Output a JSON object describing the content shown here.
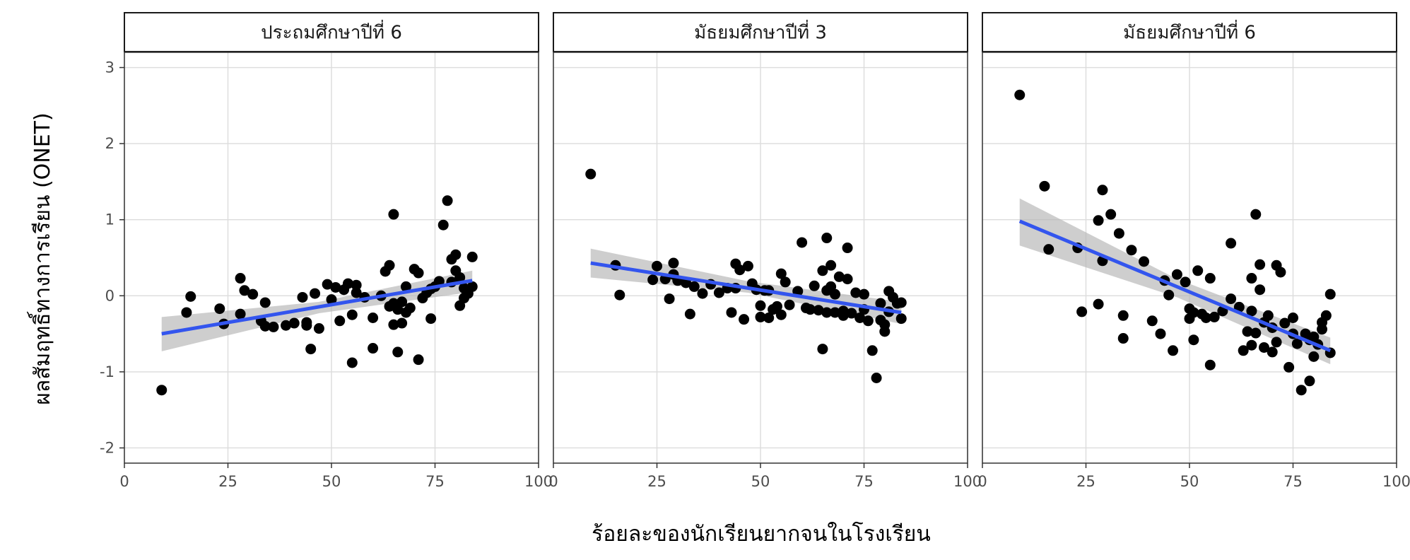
{
  "colors": {
    "point": "#000000",
    "fit_line": "#3355ee",
    "ci_band": "#b3b3b3",
    "grid": "#dcdcdc",
    "panel_border": "#333333"
  },
  "chart_data": {
    "type": "scatter",
    "facet_by": "grade level",
    "xlabel": "ร้อยละของนักเรียนยากจนในโรงเรียน",
    "ylabel": "ผลสัมฤทธิ์ทางการเรียน (ONET)",
    "xlim": [
      0,
      100
    ],
    "ylim": [
      -2.2,
      3.2
    ],
    "xticks": [
      0,
      25,
      50,
      75,
      100
    ],
    "yticks": [
      -2,
      -1,
      0,
      1,
      2,
      3
    ],
    "grid": true,
    "smoother": "linear fit with 95% confidence band",
    "panels": [
      {
        "title": "ประถมศึกษาปีที่ 6",
        "fit": {
          "x": [
            9,
            84
          ],
          "y": [
            -0.5,
            0.2
          ]
        },
        "band": {
          "x": [
            9,
            47,
            84
          ],
          "upper": [
            -0.28,
            -0.08,
            0.33
          ],
          "lower": [
            -0.73,
            -0.23,
            0.05
          ]
        },
        "points": [
          [
            9,
            -1.24
          ],
          [
            15,
            -0.22
          ],
          [
            16,
            -0.01
          ],
          [
            23,
            -0.17
          ],
          [
            24,
            -0.37
          ],
          [
            28,
            0.23
          ],
          [
            28,
            -0.24
          ],
          [
            29,
            0.07
          ],
          [
            31,
            0.02
          ],
          [
            33,
            -0.33
          ],
          [
            34,
            -0.4
          ],
          [
            34,
            -0.09
          ],
          [
            36,
            -0.41
          ],
          [
            39,
            -0.39
          ],
          [
            41,
            -0.36
          ],
          [
            43,
            -0.02
          ],
          [
            44,
            -0.39
          ],
          [
            44,
            -0.35
          ],
          [
            45,
            -0.7
          ],
          [
            46,
            0.03
          ],
          [
            47,
            -0.43
          ],
          [
            49,
            0.15
          ],
          [
            50,
            -0.05
          ],
          [
            51,
            0.11
          ],
          [
            52,
            -0.33
          ],
          [
            53,
            0.08
          ],
          [
            54,
            0.16
          ],
          [
            55,
            -0.88
          ],
          [
            55,
            -0.25
          ],
          [
            56,
            0.14
          ],
          [
            56,
            0.04
          ],
          [
            58,
            -0.02
          ],
          [
            60,
            -0.29
          ],
          [
            60,
            -0.69
          ],
          [
            62,
            0.0
          ],
          [
            63,
            0.32
          ],
          [
            64,
            -0.14
          ],
          [
            64,
            0.4
          ],
          [
            65,
            1.07
          ],
          [
            65,
            -0.1
          ],
          [
            65,
            -0.38
          ],
          [
            66,
            -0.74
          ],
          [
            66,
            -0.18
          ],
          [
            67,
            -0.36
          ],
          [
            67,
            -0.08
          ],
          [
            68,
            -0.22
          ],
          [
            68,
            0.12
          ],
          [
            69,
            -0.16
          ],
          [
            70,
            0.35
          ],
          [
            71,
            0.3
          ],
          [
            71,
            -0.84
          ],
          [
            72,
            -0.03
          ],
          [
            73,
            0.04
          ],
          [
            74,
            0.09
          ],
          [
            74,
            -0.3
          ],
          [
            75,
            0.12
          ],
          [
            76,
            0.19
          ],
          [
            77,
            0.93
          ],
          [
            78,
            1.25
          ],
          [
            79,
            0.48
          ],
          [
            79,
            0.18
          ],
          [
            80,
            0.54
          ],
          [
            80,
            0.33
          ],
          [
            81,
            -0.13
          ],
          [
            81,
            0.24
          ],
          [
            82,
            -0.03
          ],
          [
            82,
            0.1
          ],
          [
            83,
            0.03
          ],
          [
            84,
            0.51
          ],
          [
            84,
            0.12
          ]
        ]
      },
      {
        "title": "มัธยมศึกษาปีที่ 3",
        "fit": {
          "x": [
            9,
            84
          ],
          "y": [
            0.43,
            -0.22
          ]
        },
        "band": {
          "x": [
            9,
            47,
            84
          ],
          "upper": [
            0.62,
            0.19,
            -0.08
          ],
          "lower": [
            0.24,
            0.04,
            -0.37
          ]
        },
        "points": [
          [
            9,
            1.6
          ],
          [
            15,
            0.4
          ],
          [
            16,
            0.01
          ],
          [
            24,
            0.21
          ],
          [
            25,
            0.39
          ],
          [
            27,
            0.22
          ],
          [
            28,
            -0.04
          ],
          [
            29,
            0.43
          ],
          [
            29,
            0.28
          ],
          [
            30,
            0.2
          ],
          [
            32,
            0.17
          ],
          [
            33,
            -0.24
          ],
          [
            34,
            0.12
          ],
          [
            36,
            0.03
          ],
          [
            38,
            0.15
          ],
          [
            40,
            0.04
          ],
          [
            42,
            0.1
          ],
          [
            43,
            -0.22
          ],
          [
            44,
            0.42
          ],
          [
            44,
            0.1
          ],
          [
            45,
            0.34
          ],
          [
            46,
            -0.31
          ],
          [
            47,
            0.39
          ],
          [
            48,
            0.16
          ],
          [
            49,
            0.08
          ],
          [
            50,
            -0.13
          ],
          [
            50,
            -0.28
          ],
          [
            51,
            0.07
          ],
          [
            52,
            0.07
          ],
          [
            52,
            -0.29
          ],
          [
            53,
            -0.18
          ],
          [
            54,
            -0.14
          ],
          [
            55,
            0.29
          ],
          [
            55,
            -0.25
          ],
          [
            56,
            0.18
          ],
          [
            57,
            -0.12
          ],
          [
            59,
            0.06
          ],
          [
            60,
            0.7
          ],
          [
            61,
            -0.16
          ],
          [
            62,
            -0.18
          ],
          [
            63,
            0.13
          ],
          [
            64,
            -0.19
          ],
          [
            65,
            0.33
          ],
          [
            65,
            -0.7
          ],
          [
            66,
            0.07
          ],
          [
            66,
            0.76
          ],
          [
            66,
            -0.22
          ],
          [
            67,
            0.4
          ],
          [
            67,
            0.12
          ],
          [
            68,
            -0.22
          ],
          [
            68,
            0.02
          ],
          [
            69,
            0.25
          ],
          [
            70,
            -0.2
          ],
          [
            70,
            -0.26
          ],
          [
            71,
            0.22
          ],
          [
            71,
            0.63
          ],
          [
            72,
            -0.23
          ],
          [
            73,
            0.04
          ],
          [
            74,
            -0.29
          ],
          [
            75,
            0.02
          ],
          [
            75,
            -0.18
          ],
          [
            76,
            -0.33
          ],
          [
            77,
            -0.72
          ],
          [
            78,
            -1.08
          ],
          [
            79,
            -0.1
          ],
          [
            79,
            -0.32
          ],
          [
            80,
            -0.38
          ],
          [
            80,
            -0.47
          ],
          [
            81,
            0.06
          ],
          [
            81,
            -0.21
          ],
          [
            82,
            -0.02
          ],
          [
            83,
            -0.1
          ],
          [
            84,
            -0.09
          ],
          [
            84,
            -0.3
          ]
        ]
      },
      {
        "title": "มัธยมศึกษาปีที่ 6",
        "fit": {
          "x": [
            9,
            84
          ],
          "y": [
            0.98,
            -0.72
          ]
        },
        "band": {
          "x": [
            9,
            47,
            84
          ],
          "upper": [
            1.28,
            0.22,
            -0.55
          ],
          "lower": [
            0.66,
            -0.02,
            -0.9
          ]
        },
        "points": [
          [
            9,
            2.64
          ],
          [
            15,
            1.44
          ],
          [
            16,
            0.61
          ],
          [
            23,
            0.63
          ],
          [
            24,
            -0.21
          ],
          [
            28,
            -0.11
          ],
          [
            28,
            0.99
          ],
          [
            29,
            1.39
          ],
          [
            29,
            0.46
          ],
          [
            31,
            1.07
          ],
          [
            33,
            0.82
          ],
          [
            34,
            -0.26
          ],
          [
            34,
            -0.56
          ],
          [
            36,
            0.6
          ],
          [
            39,
            0.45
          ],
          [
            41,
            -0.33
          ],
          [
            43,
            -0.5
          ],
          [
            44,
            0.2
          ],
          [
            45,
            0.01
          ],
          [
            46,
            -0.72
          ],
          [
            47,
            0.28
          ],
          [
            49,
            0.18
          ],
          [
            50,
            -0.3
          ],
          [
            50,
            -0.17
          ],
          [
            51,
            -0.58
          ],
          [
            51,
            -0.22
          ],
          [
            52,
            0.33
          ],
          [
            53,
            -0.24
          ],
          [
            54,
            -0.29
          ],
          [
            55,
            0.23
          ],
          [
            55,
            -0.91
          ],
          [
            56,
            -0.28
          ],
          [
            58,
            -0.2
          ],
          [
            60,
            -0.04
          ],
          [
            60,
            0.69
          ],
          [
            62,
            -0.15
          ],
          [
            63,
            -0.72
          ],
          [
            64,
            -0.47
          ],
          [
            65,
            -0.65
          ],
          [
            65,
            -0.2
          ],
          [
            65,
            0.23
          ],
          [
            66,
            1.07
          ],
          [
            66,
            -0.49
          ],
          [
            67,
            0.41
          ],
          [
            67,
            0.08
          ],
          [
            68,
            -0.68
          ],
          [
            68,
            -0.35
          ],
          [
            69,
            -0.26
          ],
          [
            70,
            -0.74
          ],
          [
            70,
            -0.42
          ],
          [
            71,
            -0.61
          ],
          [
            71,
            0.4
          ],
          [
            72,
            0.31
          ],
          [
            73,
            -0.36
          ],
          [
            74,
            -0.94
          ],
          [
            75,
            -0.29
          ],
          [
            75,
            -0.5
          ],
          [
            76,
            -0.63
          ],
          [
            77,
            -1.24
          ],
          [
            78,
            -0.5
          ],
          [
            79,
            -1.12
          ],
          [
            79,
            -0.58
          ],
          [
            80,
            -0.54
          ],
          [
            80,
            -0.8
          ],
          [
            81,
            -0.64
          ],
          [
            82,
            -0.35
          ],
          [
            82,
            -0.44
          ],
          [
            83,
            -0.26
          ],
          [
            84,
            -0.75
          ],
          [
            84,
            0.02
          ]
        ]
      }
    ]
  }
}
